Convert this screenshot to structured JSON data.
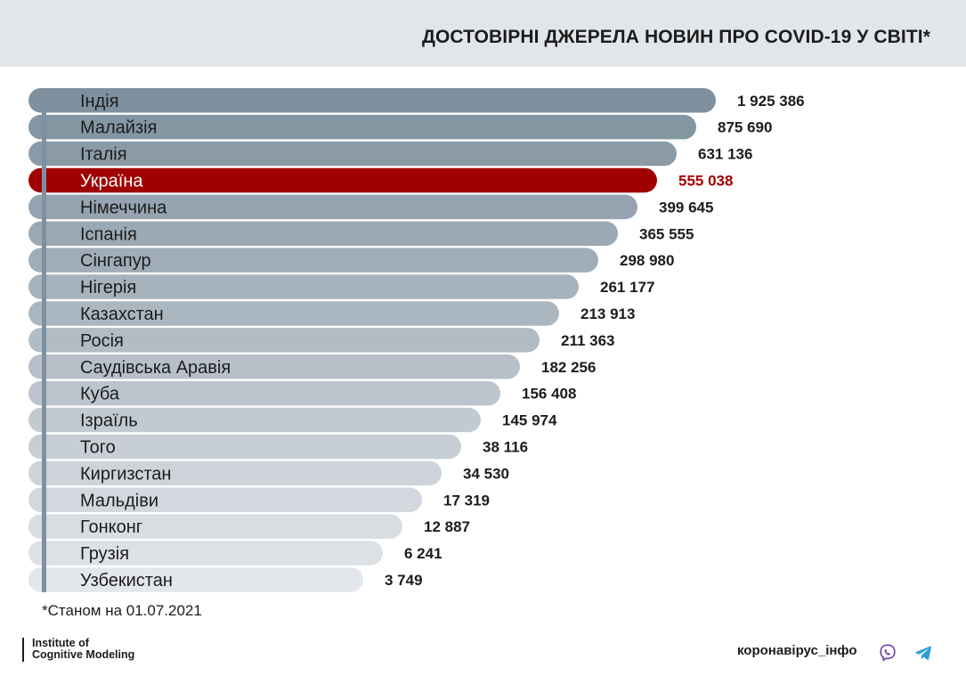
{
  "title": "ДОСТОВІРНІ ДЖЕРЕЛА НОВИН ПРО COVID-19 У СВІТІ*",
  "note": "*Станом на 01.07.2021",
  "logo": {
    "line1": "Institute of",
    "line2": "Cognitive Modeling"
  },
  "brand": "коронавірус_інфо",
  "icons": [
    "viber-icon",
    "telegram-icon"
  ],
  "colors": {
    "highlight": "#a10000",
    "bar_dark": "#7f919f",
    "bar_light": "#e3e6ea",
    "header_bg": "#e2e6ea",
    "text": "#1c1c1c"
  },
  "chart_data": {
    "type": "bar",
    "orientation": "horizontal",
    "highlight": "Україна",
    "categories": [
      "Індія",
      "Малайзія",
      "Італія",
      "Україна",
      "Німеччина",
      "Іспанія",
      "Сінгапур",
      "Нігерія",
      "Казахстан",
      "Росія",
      "Саудівська Аравія",
      "Куба",
      "Ізраїль",
      "Того",
      "Киргизстан",
      "Мальдіви",
      "Гонконг",
      "Грузія",
      "Узбекистан"
    ],
    "values": [
      1925386,
      875690,
      631136,
      555038,
      399645,
      365555,
      298980,
      261177,
      213913,
      211363,
      182256,
      156408,
      145974,
      38116,
      34530,
      17319,
      12887,
      6241,
      3749
    ],
    "value_labels": [
      "1 925 386",
      "875 690",
      "631 136",
      "555 038",
      "399 645",
      "365 555",
      "298 980",
      "261 177",
      "213 913",
      "211 363",
      "182 256",
      "156 408",
      "145 974",
      "38 116",
      "34 530",
      "17 319",
      "12 887",
      "6 241",
      "3 749"
    ]
  }
}
